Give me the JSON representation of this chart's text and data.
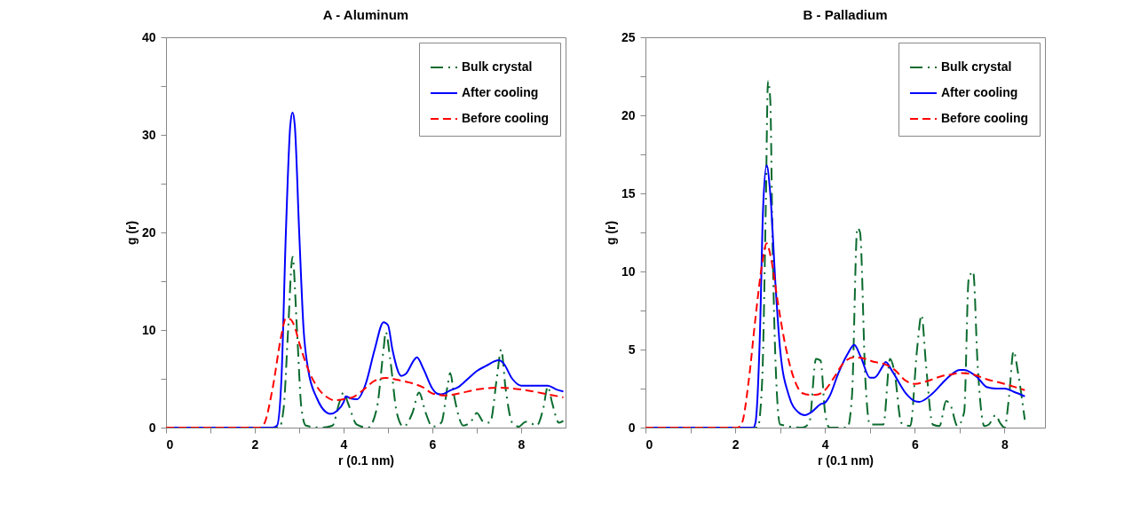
{
  "chart_data": [
    {
      "type": "line",
      "title": "A - Aluminum",
      "xlabel": "r (0.1 nm)",
      "ylabel": "g (r)",
      "legend": "top right",
      "grid": false,
      "xlim": [
        0,
        9
      ],
      "ylim": [
        0,
        40
      ],
      "xticks": [
        0,
        {
          "value": 1,
          "label": null
        },
        2,
        {
          "value": 3,
          "label": null
        },
        4,
        {
          "value": 5,
          "label": null
        },
        6,
        {
          "value": 7,
          "label": null
        },
        8
      ],
      "yticks": [
        0,
        {
          "value": 5,
          "label": null
        },
        10,
        {
          "value": 15,
          "label": null
        },
        20,
        {
          "value": 25,
          "label": null
        },
        30,
        {
          "value": 35,
          "label": null
        },
        40
      ],
      "series": [
        {
          "name": "Bulk crystal",
          "color": "#0b6b2e",
          "line_style": "dashdot",
          "x": [
            0,
            2.55,
            2.65,
            2.75,
            2.85,
            2.95,
            3.05,
            3.15,
            3.5,
            3.75,
            3.9,
            4.0,
            4.1,
            4.3,
            4.55,
            4.75,
            4.9,
            4.95,
            5.05,
            5.2,
            5.35,
            5.55,
            5.7,
            5.85,
            6.0,
            6.2,
            6.35,
            6.4,
            6.5,
            6.7,
            6.9,
            7.0,
            7.15,
            7.3,
            7.45,
            7.55,
            7.65,
            7.8,
            7.95,
            8.1,
            8.2,
            8.35,
            8.5,
            8.6,
            8.7,
            8.85,
            8.95
          ],
          "values": [
            0,
            0,
            2,
            10,
            17.5,
            10,
            2,
            0.2,
            0,
            0.2,
            2.5,
            3.6,
            2.5,
            0.3,
            0,
            2,
            8,
            9.8,
            7,
            1.5,
            0.1,
            1.5,
            3.6,
            1.5,
            0.1,
            0.5,
            4.5,
            5.6,
            3,
            0.2,
            0.8,
            1.5,
            0.6,
            0.5,
            5,
            8,
            4,
            0.5,
            0.1,
            0.6,
            0.5,
            0.2,
            2,
            4.2,
            2.5,
            0.5,
            0.7
          ]
        },
        {
          "name": "After cooling",
          "color": "#0000ff",
          "line_style": "solid",
          "x": [
            0,
            2.4,
            2.5,
            2.6,
            2.7,
            2.8,
            2.85,
            2.9,
            3.0,
            3.1,
            3.2,
            3.4,
            3.6,
            3.7,
            3.85,
            4.0,
            4.05,
            4.15,
            4.3,
            4.5,
            4.7,
            4.9,
            5.0,
            5.1,
            5.3,
            5.4,
            5.6,
            5.65,
            5.8,
            6.0,
            6.1,
            6.2,
            6.4,
            6.6,
            6.8,
            7.0,
            7.2,
            7.5,
            7.6,
            7.8,
            8.0,
            8.3,
            8.6,
            8.8,
            8.95
          ],
          "values": [
            0,
            0,
            0.2,
            5,
            20,
            31,
            32.3,
            31,
            20,
            10,
            6,
            3,
            1.6,
            1.4,
            1.7,
            2.6,
            3.2,
            3.0,
            2.9,
            4.5,
            8,
            10.8,
            10.5,
            8,
            5.3,
            5.5,
            7,
            7.2,
            6,
            4,
            3.5,
            3.4,
            3.8,
            4.2,
            5,
            5.8,
            6.3,
            6.9,
            6.6,
            5,
            4.3,
            4.3,
            4.3,
            3.9,
            3.7
          ]
        },
        {
          "name": "Before cooling",
          "color": "#ff0000",
          "line_style": "dashed",
          "x": [
            0,
            2.1,
            2.2,
            2.4,
            2.6,
            2.7,
            2.8,
            2.9,
            3.0,
            3.2,
            3.4,
            3.6,
            3.8,
            4.0,
            4.2,
            4.4,
            4.7,
            4.95,
            5.2,
            5.5,
            5.8,
            6.0,
            6.3,
            6.6,
            7.0,
            7.5,
            8.0,
            8.5,
            8.95
          ],
          "values": [
            0,
            0,
            0.3,
            4,
            9.5,
            11.2,
            11.1,
            10.3,
            8.7,
            6,
            4.2,
            3.2,
            2.8,
            2.9,
            3.1,
            3.7,
            4.8,
            5.1,
            4.9,
            4.6,
            4.1,
            3.5,
            3.3,
            3.5,
            3.9,
            4.1,
            3.9,
            3.5,
            3.1
          ]
        }
      ]
    },
    {
      "type": "line",
      "title": "B - Palladium",
      "xlabel": "r (0.1 nm)",
      "ylabel": "g (r)",
      "legend": "top right",
      "grid": false,
      "xlim": [
        0,
        8.9
      ],
      "ylim": [
        0,
        25
      ],
      "xticks": [
        0,
        {
          "value": 1,
          "label": null
        },
        2,
        {
          "value": 3,
          "label": null
        },
        4,
        {
          "value": 5,
          "label": null
        },
        6,
        {
          "value": 7,
          "label": null
        },
        8
      ],
      "yticks": [
        0,
        {
          "value": 2.5,
          "label": null
        },
        5,
        {
          "value": 7.5,
          "label": null
        },
        10,
        {
          "value": 12.5,
          "label": null
        },
        15,
        {
          "value": 17.5,
          "label": null
        },
        20,
        {
          "value": 22.5,
          "label": null
        },
        25
      ],
      "series": [
        {
          "name": "Bulk crystal",
          "color": "#0b6b2e",
          "line_style": "dashdot",
          "x": [
            0,
            2.5,
            2.6,
            2.68,
            2.73,
            2.78,
            2.83,
            2.9,
            3.0,
            3.5,
            3.65,
            3.8,
            3.9,
            4.0,
            4.1,
            4.5,
            4.6,
            4.72,
            4.78,
            4.9,
            5.0,
            5.3,
            5.45,
            5.55,
            5.7,
            5.9,
            6.05,
            6.15,
            6.25,
            6.4,
            6.55,
            6.7,
            6.8,
            6.95,
            7.1,
            7.2,
            7.3,
            7.4,
            7.55,
            7.65,
            7.8,
            7.9,
            8.0,
            8.1,
            8.2,
            8.3,
            8.45
          ],
          "values": [
            0,
            0,
            3,
            14,
            22.2,
            21,
            12,
            4,
            0.2,
            0,
            0.3,
            4.4,
            4.3,
            1,
            0,
            0,
            2,
            12.8,
            12.5,
            3,
            0.2,
            0.2,
            4.4,
            3.5,
            0.3,
            0.1,
            5,
            7.2,
            4,
            0.2,
            0.1,
            1.7,
            1.4,
            0.1,
            1,
            9.5,
            10,
            4,
            0.1,
            0.2,
            0.8,
            0.3,
            0,
            2,
            4.9,
            3.5,
            0.5
          ]
        },
        {
          "name": "After cooling",
          "color": "#0000ff",
          "line_style": "solid",
          "x": [
            0,
            2.4,
            2.45,
            2.55,
            2.62,
            2.7,
            2.78,
            2.9,
            3.0,
            3.2,
            3.4,
            3.55,
            3.7,
            3.9,
            4.0,
            4.1,
            4.3,
            4.5,
            4.65,
            4.8,
            5.0,
            5.1,
            5.3,
            5.35,
            5.5,
            5.8,
            6.0,
            6.1,
            6.4,
            6.7,
            7.0,
            7.1,
            7.4,
            7.6,
            7.8,
            8.0,
            8.2,
            8.45
          ],
          "values": [
            0,
            0,
            0.3,
            6,
            14,
            16.8,
            15,
            9,
            5,
            2,
            1,
            0.8,
            1,
            1.5,
            1.6,
            2,
            3.5,
            4.7,
            5.3,
            4.5,
            3.2,
            3.2,
            4,
            4.2,
            3.6,
            2.2,
            1.7,
            1.65,
            2.2,
            3.1,
            3.7,
            3.7,
            3.2,
            2.6,
            2.5,
            2.5,
            2.3,
            2.0
          ]
        },
        {
          "name": "Before cooling",
          "color": "#ff0000",
          "line_style": "dashed",
          "x": [
            0,
            2.05,
            2.15,
            2.3,
            2.45,
            2.6,
            2.7,
            2.8,
            2.95,
            3.1,
            3.3,
            3.5,
            3.65,
            3.8,
            4.0,
            4.2,
            4.4,
            4.65,
            4.9,
            5.1,
            5.3,
            5.55,
            5.8,
            6.0,
            6.3,
            6.6,
            6.8,
            7.0,
            7.3,
            7.6,
            8.0,
            8.45
          ],
          "values": [
            0,
            0,
            0.3,
            3,
            7,
            10.5,
            11.8,
            10.8,
            8,
            5.5,
            3.2,
            2.2,
            2.1,
            2.1,
            2.4,
            3.2,
            4.1,
            4.5,
            4.4,
            4.2,
            4.1,
            3.7,
            3.0,
            2.8,
            3.0,
            3.3,
            3.4,
            3.5,
            3.4,
            3.1,
            2.8,
            2.4
          ]
        }
      ]
    }
  ]
}
